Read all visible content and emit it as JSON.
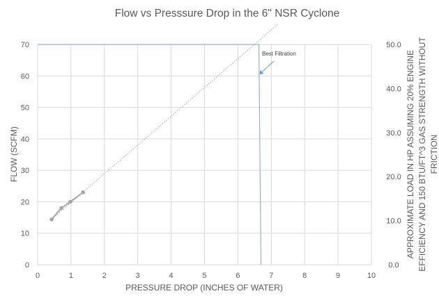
{
  "chart_data": {
    "type": "scatter",
    "title": "Flow vs Presssure Drop in the 6\" NSR Cyclone",
    "xlabel": "PRESSURE DROP (INCHES OF WATER)",
    "ylabel": "FLOW (SCFM)",
    "y2label_lines": [
      "APPROXIMATE LOAD IN HP ASSUMING 20% ENGINE",
      "EFFICIENCY AND 150 BTU/FT^3 GAS STRENGTH WITHOUT",
      "FRICTION"
    ],
    "xlim": [
      0,
      10
    ],
    "ylim": [
      0,
      70
    ],
    "y2lim": [
      0,
      50
    ],
    "xticks": [
      "0",
      "1",
      "2",
      "3",
      "4",
      "5",
      "6",
      "7",
      "8",
      "9",
      "10"
    ],
    "yticks": [
      "0",
      "10",
      "20",
      "30",
      "40",
      "50",
      "60",
      "70"
    ],
    "y2ticks": [
      "0.0",
      "10.0",
      "20.0",
      "30.0",
      "40.0",
      "50.0"
    ],
    "grid": true,
    "series": [
      {
        "x": [
          0.42,
          0.71,
          0.98,
          1.36
        ],
        "y": [
          14.4,
          18.0,
          20.0,
          23.0
        ],
        "color": "#a6a6a6",
        "style": "line-markers"
      }
    ],
    "trendline": {
      "type": "linear",
      "slope": 9.15,
      "intercept": 10.6,
      "x_from": 0.42,
      "x_to": 7.2,
      "color": "#a6a6a6",
      "style": "dotted"
    },
    "reference_lines": {
      "horizontal_y": 70,
      "vertical_x": 6.65,
      "color": "#8db3d6"
    },
    "annotation": {
      "text": "Best Filtration",
      "arrow_to": [
        6.65,
        60.5
      ]
    }
  }
}
